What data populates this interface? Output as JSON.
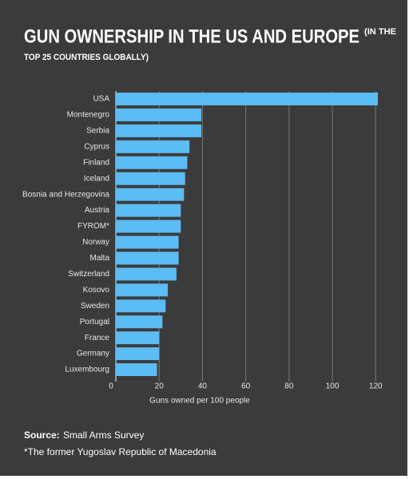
{
  "chart_data": {
    "type": "barh",
    "title": "GUN OWNERSHIP IN THE US AND EUROPE",
    "subtitle_lines": [
      "(IN THE",
      "TOP 25 COUNTRIES GLOBALLY)"
    ],
    "categories": [
      "USA",
      "Montenegro",
      "Serbia",
      "Cyprus",
      "Finland",
      "Iceland",
      "Bosnia and Herzegovina",
      "Austria",
      "FYROM*",
      "Norway",
      "Malta",
      "Switzerland",
      "Kosovo",
      "Sweden",
      "Portugal",
      "France",
      "Germany",
      "Luxembourg"
    ],
    "values": [
      121,
      39.5,
      39.5,
      34,
      33,
      32,
      31.5,
      30,
      30,
      29,
      29,
      28,
      24,
      23,
      21.5,
      20,
      20,
      19
    ],
    "color": "#5bbcf6",
    "xlim": [
      0,
      121
    ],
    "xticks": [
      0,
      20,
      40,
      60,
      80,
      100,
      120
    ],
    "grid": true,
    "xlabel": "Guns owned per 100 people",
    "source_label": "Source:",
    "source": "Small Arms Survey",
    "footnote": "*The former Yugoslav Republic of Macedonia"
  }
}
